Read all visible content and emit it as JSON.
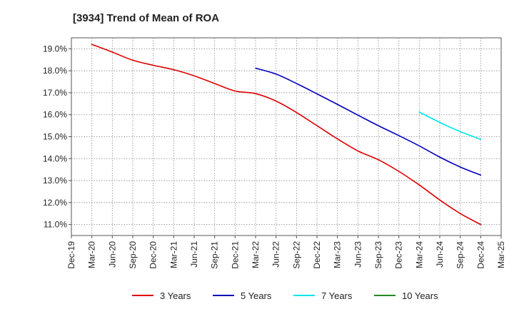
{
  "chart_data": {
    "type": "line",
    "title": "[3934]  Trend of Mean of ROA",
    "xlabel": "",
    "ylabel": "",
    "x_ticks": [
      "Dec-19",
      "Mar-20",
      "Jun-20",
      "Sep-20",
      "Dec-20",
      "Mar-21",
      "Jun-21",
      "Sep-21",
      "Dec-21",
      "Mar-22",
      "Jun-22",
      "Sep-22",
      "Dec-22",
      "Mar-23",
      "Jun-23",
      "Sep-23",
      "Dec-23",
      "Mar-24",
      "Jun-24",
      "Sep-24",
      "Dec-24",
      "Mar-25"
    ],
    "y_ticks": [
      "11.0%",
      "12.0%",
      "13.0%",
      "14.0%",
      "15.0%",
      "16.0%",
      "17.0%",
      "18.0%",
      "19.0%"
    ],
    "y_tick_values": [
      11,
      12,
      13,
      14,
      15,
      16,
      17,
      18,
      19
    ],
    "ylim": [
      10.5,
      19.5
    ],
    "grid": true,
    "legend_position": "bottom",
    "series": [
      {
        "name": "3 Years",
        "color": "#dd0000",
        "x": [
          "Mar-20",
          "Jun-20",
          "Sep-20",
          "Dec-20",
          "Mar-21",
          "Jun-21",
          "Sep-21",
          "Dec-21",
          "Mar-22",
          "Jun-22",
          "Sep-22",
          "Dec-22",
          "Mar-23",
          "Jun-23",
          "Sep-23",
          "Dec-23",
          "Mar-24",
          "Jun-24",
          "Sep-24",
          "Dec-24"
        ],
        "values": [
          19.2,
          18.85,
          18.48,
          18.25,
          18.05,
          17.77,
          17.42,
          17.08,
          16.96,
          16.62,
          16.1,
          15.5,
          14.9,
          14.35,
          13.95,
          13.42,
          12.8,
          12.12,
          11.5,
          11.0
        ]
      },
      {
        "name": "5 Years",
        "color": "#0000bb",
        "x": [
          "Mar-22",
          "Jun-22",
          "Sep-22",
          "Dec-22",
          "Mar-23",
          "Jun-23",
          "Sep-23",
          "Dec-23",
          "Mar-24",
          "Jun-24",
          "Sep-24",
          "Dec-24"
        ],
        "values": [
          18.12,
          17.85,
          17.42,
          16.95,
          16.47,
          15.98,
          15.5,
          15.05,
          14.58,
          14.07,
          13.62,
          13.25
        ]
      },
      {
        "name": "7 Years",
        "color": "#00e5ee",
        "x": [
          "Mar-24",
          "Jun-24",
          "Sep-24",
          "Dec-24"
        ],
        "values": [
          16.12,
          15.65,
          15.23,
          14.88
        ]
      },
      {
        "name": "10 Years",
        "color": "#228b22",
        "x": [],
        "values": []
      }
    ]
  }
}
